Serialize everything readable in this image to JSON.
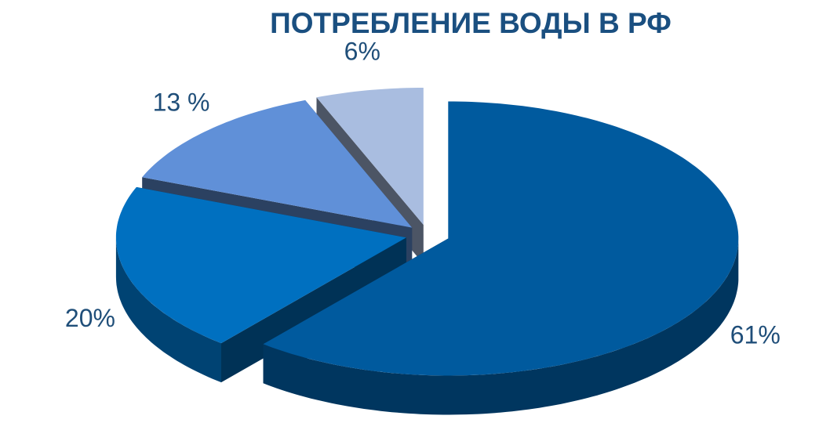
{
  "chart_data": {
    "type": "pie",
    "title": "ПОТРЕБЛЕНИЕ ВОДЫ В РФ",
    "values": [
      61,
      20,
      13,
      6
    ],
    "value_labels": [
      "61%",
      "20%",
      "13 %",
      "6%"
    ],
    "colors": [
      "#005a9e",
      "#0070c0",
      "#6090d8",
      "#a9bde0"
    ]
  }
}
